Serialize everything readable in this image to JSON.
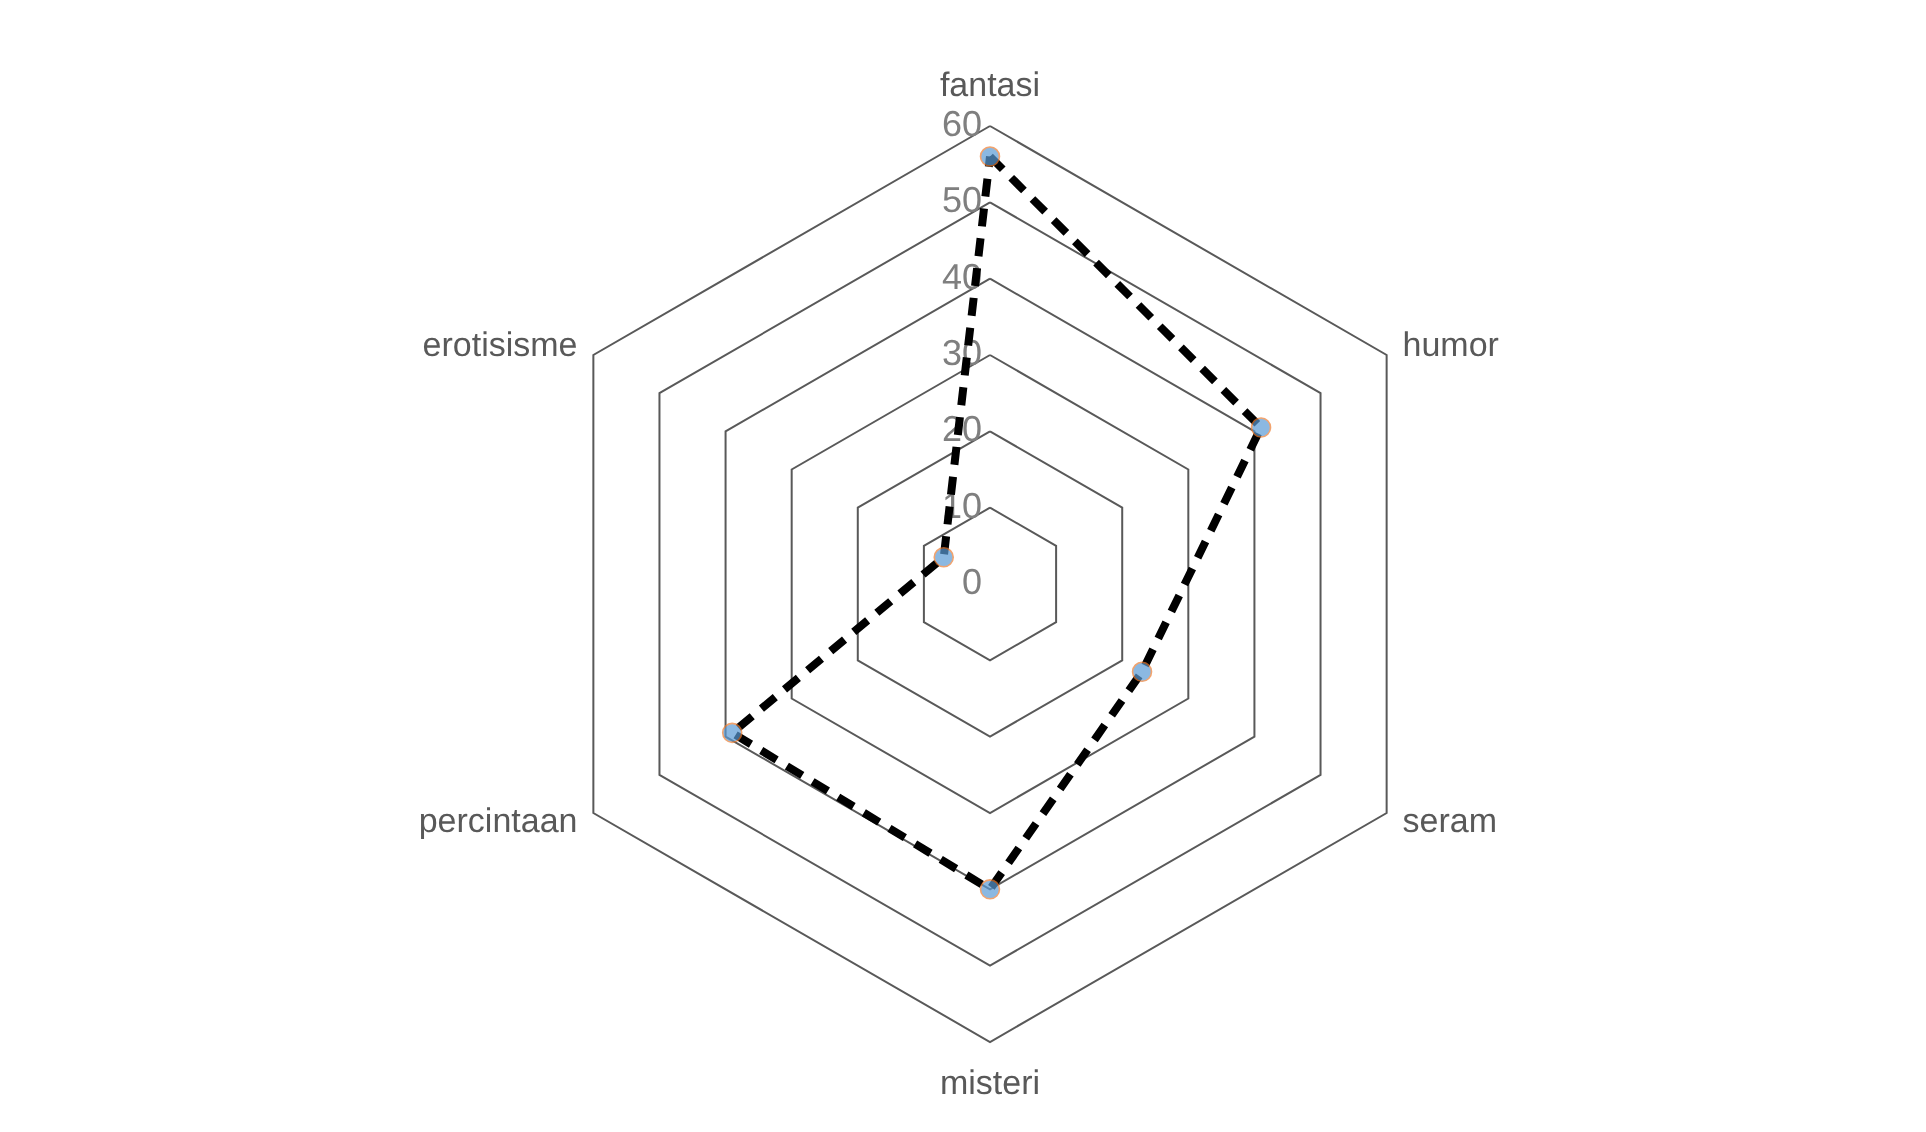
{
  "chart_data": {
    "type": "radar",
    "categories": [
      "fantasi",
      "humor",
      "seram",
      "misteri",
      "percintaan",
      "erotisisme"
    ],
    "series": [
      {
        "color": "#000000",
        "colors": [
          "#5b9bd5",
          "#5b9bd5",
          "#5b9bd5",
          "#5b9bd5",
          "#5b9bd5",
          "#5b9bd5"
        ],
        "values": [
          56,
          41,
          23,
          40,
          39,
          7
        ]
      }
    ],
    "ylim": [
      0,
      60
    ],
    "yticks": [
      0,
      10,
      20,
      30,
      40,
      50,
      60
    ],
    "grid": true,
    "marker": "circle",
    "line_style": "dashed"
  }
}
